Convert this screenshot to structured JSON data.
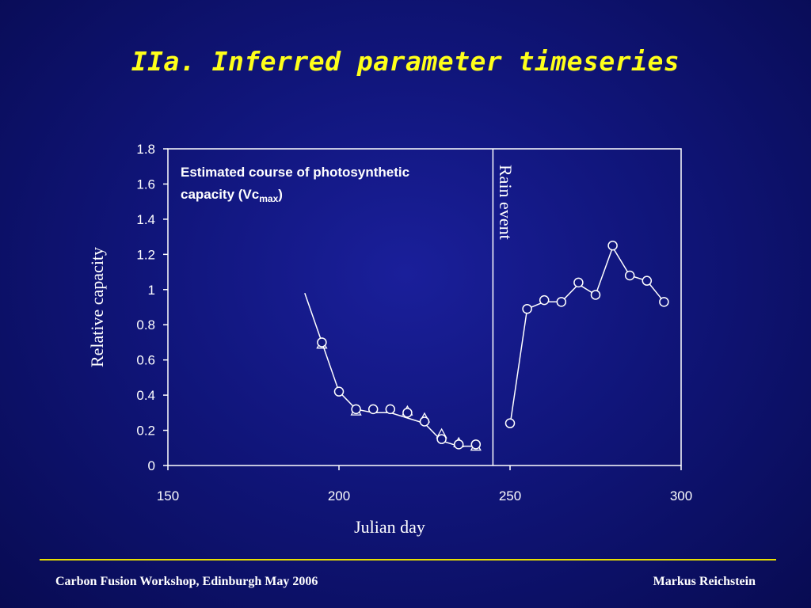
{
  "slide": {
    "title": "IIa. Inferred parameter timeseries",
    "footer_left": "Carbon Fusion Workshop, Edinburgh May 2006",
    "footer_right": "Markus Reichstein"
  },
  "chart_data": {
    "type": "scatter",
    "annotation": "Estimated course of photosynthetic capacity (Vcmax)",
    "annotation_line1": "Estimated course of photosynthetic",
    "annotation_line2_text": "capacity  (Vc",
    "annotation_line2_sub": "max",
    "annotation_line2_end": ")",
    "xlabel": "Julian day",
    "ylabel": "Relative capacity",
    "xlim": [
      150,
      300
    ],
    "ylim": [
      0,
      1.8
    ],
    "xticks": [
      150,
      200,
      250,
      300
    ],
    "yticks": [
      0,
      0.2,
      0.4,
      0.6,
      0.8,
      1,
      1.2,
      1.4,
      1.6,
      1.8
    ],
    "ytick_labels": [
      "0",
      "0.2",
      "0.4",
      "0.6",
      "0.8",
      "1",
      "1.2",
      "1.4",
      "1.6",
      "1.8"
    ],
    "grid": false,
    "vline": {
      "x": 245,
      "label": "Rain event"
    },
    "colors": {
      "series": "#ffffff",
      "axes": "#ffffff",
      "text": "#ffffff",
      "title": "#ffff1a"
    },
    "series": [
      {
        "marker": "line",
        "x": [
          190,
          195,
          200,
          205,
          210,
          215,
          220,
          225,
          230,
          235,
          240,
          245,
          250,
          255,
          260,
          265,
          270,
          275,
          280,
          285,
          290,
          295
        ],
        "y": [
          0.98,
          0.7,
          0.42,
          0.32,
          0.3,
          0.3,
          0.27,
          0.24,
          0.14,
          0.11,
          0.11,
          null,
          0.23,
          0.89,
          0.93,
          0.93,
          1.03,
          0.97,
          1.24,
          1.08,
          1.05,
          0.93
        ]
      },
      {
        "marker": "circle",
        "x": [
          195,
          200,
          205,
          210,
          215,
          220,
          225,
          230,
          235,
          240,
          250,
          255,
          260,
          265,
          270,
          275,
          280,
          285,
          290,
          295
        ],
        "y": [
          0.7,
          0.42,
          0.32,
          0.32,
          0.32,
          0.3,
          0.25,
          0.15,
          0.12,
          0.12,
          0.24,
          0.89,
          0.94,
          0.93,
          1.04,
          0.97,
          1.25,
          1.08,
          1.05,
          0.93
        ]
      },
      {
        "marker": "triangle",
        "x": [
          195,
          205,
          220,
          225,
          230,
          235,
          240
        ],
        "y": [
          0.69,
          0.31,
          0.31,
          0.27,
          0.18,
          0.13,
          0.11
        ]
      }
    ]
  }
}
